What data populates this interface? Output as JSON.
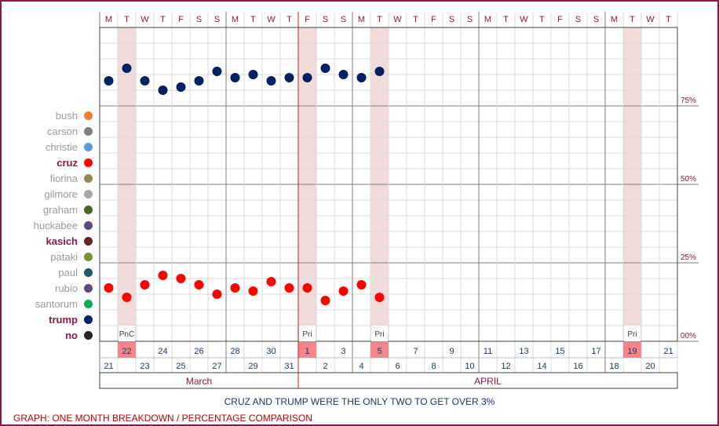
{
  "chart_data": {
    "type": "scatter",
    "title": "CRUZ AND TRUMP WERE THE ONLY TWO TO GET OVER 3%",
    "footer": "GRAPH: ONE MONTH BREAKDOWN / PERCENTAGE COMPARISON",
    "weekdays": [
      "M",
      "T",
      "W",
      "T",
      "F",
      "S",
      "S",
      "M",
      "T",
      "W",
      "T",
      "F",
      "S",
      "S",
      "M",
      "T",
      "W",
      "T",
      "F",
      "S",
      "S",
      "M",
      "T",
      "W",
      "T",
      "F",
      "S",
      "S",
      "M",
      "T",
      "W",
      "T"
    ],
    "top_dates": [
      "",
      "22",
      "24",
      "26",
      "28",
      "30",
      "1",
      "3",
      "5",
      "7",
      "9",
      "11",
      "13",
      "15",
      "17",
      "19",
      "21"
    ],
    "bottom_dates": [
      "21",
      "23",
      "25",
      "27",
      "29",
      "31",
      "2",
      "4",
      "6",
      "8",
      "10",
      "12",
      "14",
      "16",
      "18",
      "20"
    ],
    "months": [
      {
        "name": "March",
        "start": 0,
        "end": 11
      },
      {
        "name": "APRIL",
        "start": 11,
        "end": 32
      }
    ],
    "ytick_labels": [
      "75%",
      "50%",
      "25%",
      "00%"
    ],
    "ytick_values": [
      75,
      50,
      25,
      0
    ],
    "ylim": [
      0,
      100
    ],
    "shaded_columns": [
      1,
      11,
      15,
      29
    ],
    "event_labels": [
      {
        "col": 1,
        "label": "PnC"
      },
      {
        "col": 11,
        "label": "Pri"
      },
      {
        "col": 15,
        "label": "Pri"
      },
      {
        "col": 29,
        "label": "Pri"
      }
    ],
    "highlight_dates": [
      1,
      11,
      15,
      29
    ],
    "month_boundary_col": 11,
    "series": [
      {
        "name": "trump",
        "color": "#002060",
        "values": [
          83,
          87,
          83,
          80,
          81,
          83,
          86,
          84,
          85,
          83,
          84,
          84,
          87,
          85,
          84,
          86
        ]
      },
      {
        "name": "cruz",
        "color": "#ff0000",
        "values": [
          17,
          14,
          18,
          21,
          20,
          18,
          15,
          17,
          16,
          19,
          17,
          17,
          13,
          16,
          18,
          14
        ]
      }
    ]
  },
  "legend": [
    {
      "label": "bush",
      "color": "#ed7d31",
      "highlight": false
    },
    {
      "label": "carson",
      "color": "#7f7f7f",
      "highlight": false
    },
    {
      "label": "christie",
      "color": "#5b9bd5",
      "highlight": false
    },
    {
      "label": "cruz",
      "color": "#ff0000",
      "highlight": true
    },
    {
      "label": "fiorina",
      "color": "#948a54",
      "highlight": false
    },
    {
      "label": "gilmore",
      "color": "#a6a6a6",
      "highlight": false
    },
    {
      "label": "graham",
      "color": "#4f6228",
      "highlight": false
    },
    {
      "label": "huckabee",
      "color": "#604a7b",
      "highlight": false
    },
    {
      "label": "kasich",
      "color": "#632523",
      "highlight": true
    },
    {
      "label": "pataki",
      "color": "#77933c",
      "highlight": false
    },
    {
      "label": "paul",
      "color": "#215968",
      "highlight": false
    },
    {
      "label": "rubio",
      "color": "#5f497a",
      "highlight": false
    },
    {
      "label": "santorum",
      "color": "#00b050",
      "highlight": false
    },
    {
      "label": "trump",
      "color": "#002060",
      "highlight": true
    },
    {
      "label": "no",
      "color": "#262626",
      "highlight": true
    }
  ]
}
